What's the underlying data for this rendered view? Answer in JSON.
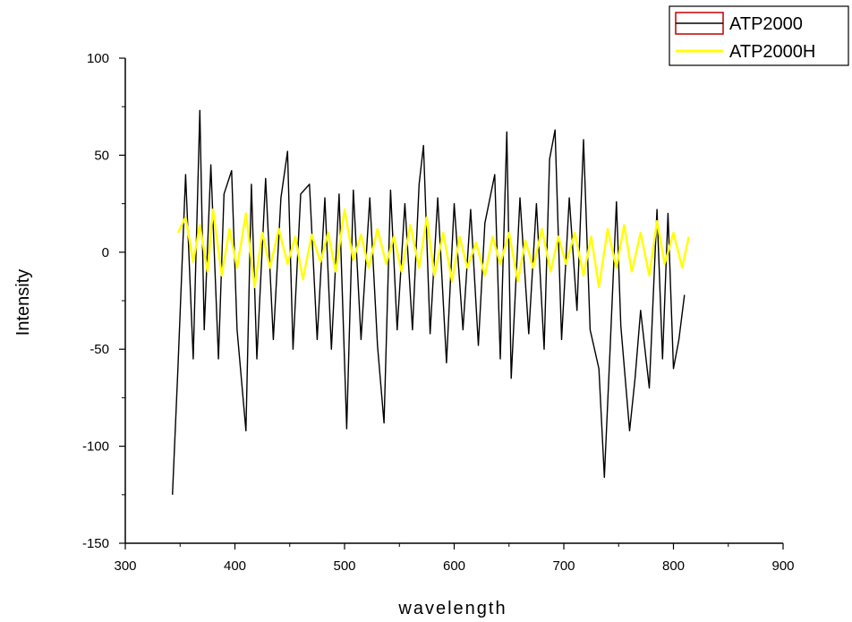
{
  "chart_data": {
    "type": "line",
    "title": "",
    "xlabel": "wavelength",
    "ylabel": "Intensity",
    "xlim": [
      300,
      900
    ],
    "ylim": [
      -150,
      100
    ],
    "x_ticks": [
      300,
      400,
      500,
      600,
      700,
      800,
      900
    ],
    "y_ticks": [
      -150,
      -100,
      -50,
      0,
      50,
      100
    ],
    "grid": false,
    "legend_position": "top-right",
    "series": [
      {
        "name": "ATP2000",
        "color": "#000000",
        "swatch_border": "#c00000",
        "points": [
          [
            343,
            -125
          ],
          [
            348,
            -60
          ],
          [
            355,
            40
          ],
          [
            362,
            -55
          ],
          [
            368,
            73
          ],
          [
            372,
            -40
          ],
          [
            378,
            45
          ],
          [
            385,
            -55
          ],
          [
            390,
            30
          ],
          [
            397,
            42
          ],
          [
            402,
            -40
          ],
          [
            410,
            -92
          ],
          [
            415,
            35
          ],
          [
            420,
            -55
          ],
          [
            428,
            38
          ],
          [
            435,
            -45
          ],
          [
            442,
            28
          ],
          [
            448,
            52
          ],
          [
            453,
            -50
          ],
          [
            460,
            30
          ],
          [
            468,
            35
          ],
          [
            475,
            -45
          ],
          [
            482,
            28
          ],
          [
            488,
            -50
          ],
          [
            495,
            30
          ],
          [
            502,
            -91
          ],
          [
            508,
            32
          ],
          [
            515,
            -45
          ],
          [
            523,
            28
          ],
          [
            530,
            -48
          ],
          [
            536,
            -88
          ],
          [
            542,
            32
          ],
          [
            548,
            -40
          ],
          [
            555,
            25
          ],
          [
            562,
            -40
          ],
          [
            568,
            35
          ],
          [
            572,
            55
          ],
          [
            578,
            -42
          ],
          [
            585,
            28
          ],
          [
            593,
            -57
          ],
          [
            600,
            25
          ],
          [
            608,
            -40
          ],
          [
            615,
            22
          ],
          [
            622,
            -48
          ],
          [
            628,
            15
          ],
          [
            637,
            40
          ],
          [
            642,
            -55
          ],
          [
            648,
            62
          ],
          [
            652,
            -65
          ],
          [
            660,
            28
          ],
          [
            668,
            -42
          ],
          [
            675,
            25
          ],
          [
            682,
            -50
          ],
          [
            687,
            48
          ],
          [
            692,
            63
          ],
          [
            698,
            -45
          ],
          [
            705,
            28
          ],
          [
            712,
            -30
          ],
          [
            718,
            58
          ],
          [
            724,
            -40
          ],
          [
            732,
            -60
          ],
          [
            737,
            -116
          ],
          [
            742,
            -52
          ],
          [
            748,
            26
          ],
          [
            752,
            -38
          ],
          [
            760,
            -92
          ],
          [
            765,
            -65
          ],
          [
            770,
            -30
          ],
          [
            778,
            -70
          ],
          [
            785,
            22
          ],
          [
            790,
            -55
          ],
          [
            795,
            20
          ],
          [
            800,
            -60
          ],
          [
            805,
            -45
          ],
          [
            810,
            -22
          ]
        ]
      },
      {
        "name": "ATP2000H",
        "color": "#ffff00",
        "swatch_border": "#ffff00",
        "points": [
          [
            348,
            10
          ],
          [
            355,
            18
          ],
          [
            362,
            -5
          ],
          [
            368,
            14
          ],
          [
            375,
            -10
          ],
          [
            380,
            22
          ],
          [
            388,
            -12
          ],
          [
            395,
            12
          ],
          [
            402,
            -8
          ],
          [
            410,
            20
          ],
          [
            418,
            -18
          ],
          [
            425,
            10
          ],
          [
            432,
            -8
          ],
          [
            440,
            12
          ],
          [
            448,
            -6
          ],
          [
            455,
            8
          ],
          [
            462,
            -14
          ],
          [
            470,
            9
          ],
          [
            478,
            -5
          ],
          [
            485,
            10
          ],
          [
            492,
            -10
          ],
          [
            500,
            22
          ],
          [
            508,
            -4
          ],
          [
            515,
            9
          ],
          [
            522,
            -8
          ],
          [
            530,
            12
          ],
          [
            538,
            -6
          ],
          [
            545,
            8
          ],
          [
            552,
            -10
          ],
          [
            560,
            14
          ],
          [
            568,
            -8
          ],
          [
            575,
            18
          ],
          [
            582,
            -12
          ],
          [
            590,
            10
          ],
          [
            598,
            -15
          ],
          [
            605,
            8
          ],
          [
            612,
            -8
          ],
          [
            620,
            5
          ],
          [
            628,
            -12
          ],
          [
            635,
            8
          ],
          [
            642,
            -6
          ],
          [
            650,
            10
          ],
          [
            658,
            -15
          ],
          [
            665,
            6
          ],
          [
            672,
            -8
          ],
          [
            680,
            12
          ],
          [
            688,
            -10
          ],
          [
            695,
            8
          ],
          [
            702,
            -6
          ],
          [
            710,
            10
          ],
          [
            718,
            -12
          ],
          [
            725,
            8
          ],
          [
            732,
            -18
          ],
          [
            740,
            12
          ],
          [
            748,
            -8
          ],
          [
            755,
            14
          ],
          [
            762,
            -10
          ],
          [
            770,
            10
          ],
          [
            778,
            -12
          ],
          [
            785,
            16
          ],
          [
            792,
            -6
          ],
          [
            800,
            10
          ],
          [
            808,
            -8
          ],
          [
            814,
            8
          ]
        ]
      }
    ]
  }
}
